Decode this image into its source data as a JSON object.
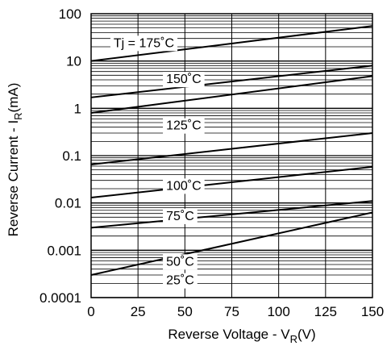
{
  "chart_data": {
    "type": "line",
    "title": "",
    "xlabel": {
      "main": "Reverse Voltage - V",
      "sub": "R",
      "tail": "(V)"
    },
    "ylabel": {
      "main": "Reverse Current - I",
      "sub": "R",
      "tail": "(mA)"
    },
    "x_scale": "linear",
    "y_scale": "log",
    "xlim": [
      0,
      150
    ],
    "ylim": [
      0.0001,
      100
    ],
    "grid": true,
    "x_ticks": [
      0,
      25,
      50,
      75,
      100,
      125,
      150
    ],
    "x_tick_labels": [
      "0",
      "25",
      "50",
      "75",
      "100",
      "125",
      "150"
    ],
    "y_ticks": [
      0.0001,
      0.001,
      0.01,
      0.1,
      1,
      10,
      100
    ],
    "y_tick_labels": [
      "0.0001",
      "0.001",
      "0.01",
      "0.1",
      "1",
      "10",
      "100"
    ],
    "series": [
      {
        "name": "Tj = 175˚C",
        "x": [
          0,
          150
        ],
        "y": [
          10,
          55
        ]
      },
      {
        "name": "150˚C",
        "x": [
          0,
          150
        ],
        "y": [
          1.7,
          8
        ]
      },
      {
        "name": "125˚C",
        "x": [
          0,
          150
        ],
        "y": [
          0.8,
          4.8
        ]
      },
      {
        "name": "100˚C",
        "x": [
          0,
          150
        ],
        "y": [
          0.065,
          0.3
        ]
      },
      {
        "name": "75˚C",
        "x": [
          0,
          150
        ],
        "y": [
          0.013,
          0.058
        ]
      },
      {
        "name": "50˚C",
        "x": [
          0,
          150
        ],
        "y": [
          0.003,
          0.011
        ]
      },
      {
        "name": "25˚C",
        "x": [
          0,
          150
        ],
        "y": [
          0.0003,
          0.0063
        ]
      }
    ],
    "annotations": [
      {
        "text": "Tj = 175˚C",
        "x": 12,
        "y": 25
      },
      {
        "text": "150˚C",
        "x": 40,
        "y": 4.3
      },
      {
        "text": "125˚C",
        "x": 40,
        "y": 0.45
      },
      {
        "text": "100˚C",
        "x": 40,
        "y": 0.024
      },
      {
        "text": "75˚C",
        "x": 40,
        "y": 0.0055
      },
      {
        "text": "50˚C",
        "x": 40,
        "y": 0.0006
      },
      {
        "text": "25˚C",
        "x": 40,
        "y": 0.00024
      }
    ]
  }
}
